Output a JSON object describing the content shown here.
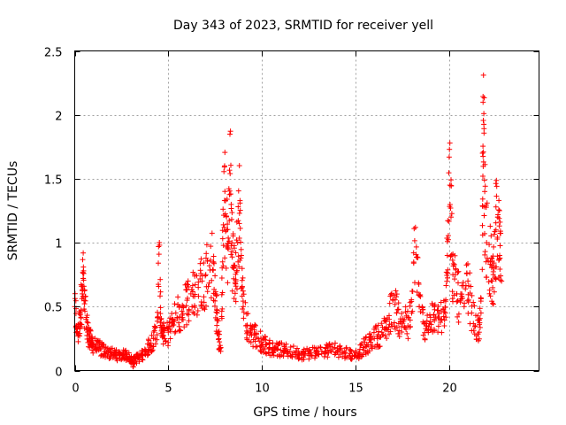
{
  "chart_data": {
    "type": "scatter",
    "title": "Day 343 of 2023, SRMTID for receiver yell",
    "xlabel": "GPS time / hours",
    "ylabel": "SRMTID / TECUs",
    "xlim": [
      0,
      24.8
    ],
    "ylim": [
      0,
      2.5
    ],
    "xticks": [
      0,
      5,
      10,
      15,
      20
    ],
    "xtick_labels": [
      "0",
      "5",
      "10",
      "15",
      "20"
    ],
    "yticks": [
      0,
      0.5,
      1,
      1.5,
      2,
      2.5
    ],
    "ytick_labels": [
      "0",
      "0.5",
      "1",
      "1.5",
      "2",
      "2.5"
    ],
    "grid": true,
    "marker": "+",
    "color": "#ff0000",
    "series": [
      {
        "name": "SRMTID",
        "description": "Dense scatter of SRMTID samples; values listed as (hour, TECU) trace points",
        "points": [
          [
            0.0,
            0.5
          ],
          [
            0.1,
            0.35
          ],
          [
            0.2,
            0.28
          ],
          [
            0.3,
            0.45
          ],
          [
            0.4,
            0.6
          ],
          [
            0.45,
            0.72
          ],
          [
            0.5,
            0.55
          ],
          [
            0.6,
            0.4
          ],
          [
            0.7,
            0.3
          ],
          [
            0.8,
            0.25
          ],
          [
            0.9,
            0.22
          ],
          [
            1.0,
            0.2
          ],
          [
            1.2,
            0.18
          ],
          [
            1.4,
            0.17
          ],
          [
            1.6,
            0.15
          ],
          [
            1.8,
            0.14
          ],
          [
            2.0,
            0.13
          ],
          [
            2.2,
            0.12
          ],
          [
            2.4,
            0.12
          ],
          [
            2.6,
            0.13
          ],
          [
            2.8,
            0.11
          ],
          [
            3.0,
            0.1
          ],
          [
            3.1,
            0.05
          ],
          [
            3.2,
            0.09
          ],
          [
            3.4,
            0.1
          ],
          [
            3.6,
            0.12
          ],
          [
            3.8,
            0.16
          ],
          [
            4.0,
            0.2
          ],
          [
            4.2,
            0.25
          ],
          [
            4.4,
            0.28
          ],
          [
            4.5,
            0.91
          ],
          [
            4.6,
            0.4
          ],
          [
            4.7,
            0.3
          ],
          [
            4.8,
            0.25
          ],
          [
            5.0,
            0.3
          ],
          [
            5.2,
            0.35
          ],
          [
            5.4,
            0.45
          ],
          [
            5.6,
            0.42
          ],
          [
            5.8,
            0.5
          ],
          [
            6.0,
            0.55
          ],
          [
            6.2,
            0.6
          ],
          [
            6.4,
            0.58
          ],
          [
            6.6,
            0.65
          ],
          [
            6.8,
            0.7
          ],
          [
            7.0,
            0.75
          ],
          [
            7.2,
            0.82
          ],
          [
            7.4,
            0.85
          ],
          [
            7.5,
            0.6
          ],
          [
            7.6,
            0.4
          ],
          [
            7.7,
            0.25
          ],
          [
            7.8,
            0.15
          ],
          [
            7.9,
            0.85
          ],
          [
            8.0,
            1.33
          ],
          [
            8.1,
            1.1
          ],
          [
            8.2,
            0.95
          ],
          [
            8.3,
            1.54
          ],
          [
            8.4,
            1.0
          ],
          [
            8.5,
            0.8
          ],
          [
            8.6,
            0.7
          ],
          [
            8.7,
            1.0
          ],
          [
            8.8,
            1.23
          ],
          [
            8.9,
            0.9
          ],
          [
            9.0,
            0.5
          ],
          [
            9.2,
            0.35
          ],
          [
            9.4,
            0.3
          ],
          [
            9.6,
            0.28
          ],
          [
            9.8,
            0.25
          ],
          [
            10.0,
            0.22
          ],
          [
            10.2,
            0.2
          ],
          [
            10.4,
            0.18
          ],
          [
            10.6,
            0.18
          ],
          [
            10.8,
            0.17
          ],
          [
            11.0,
            0.16
          ],
          [
            11.2,
            0.16
          ],
          [
            11.5,
            0.15
          ],
          [
            11.8,
            0.14
          ],
          [
            12.0,
            0.13
          ],
          [
            12.3,
            0.13
          ],
          [
            12.6,
            0.14
          ],
          [
            12.9,
            0.15
          ],
          [
            13.2,
            0.15
          ],
          [
            13.5,
            0.16
          ],
          [
            13.8,
            0.17
          ],
          [
            14.1,
            0.16
          ],
          [
            14.4,
            0.15
          ],
          [
            14.7,
            0.13
          ],
          [
            15.0,
            0.12
          ],
          [
            15.2,
            0.14
          ],
          [
            15.4,
            0.18
          ],
          [
            15.6,
            0.2
          ],
          [
            15.8,
            0.22
          ],
          [
            16.0,
            0.25
          ],
          [
            16.2,
            0.28
          ],
          [
            16.4,
            0.3
          ],
          [
            16.6,
            0.32
          ],
          [
            16.8,
            0.4
          ],
          [
            17.0,
            0.55
          ],
          [
            17.2,
            0.45
          ],
          [
            17.4,
            0.38
          ],
          [
            17.6,
            0.4
          ],
          [
            17.8,
            0.35
          ],
          [
            18.0,
            0.45
          ],
          [
            18.2,
            1.12
          ],
          [
            18.4,
            0.5
          ],
          [
            18.6,
            0.38
          ],
          [
            18.8,
            0.35
          ],
          [
            19.0,
            0.38
          ],
          [
            19.2,
            0.4
          ],
          [
            19.4,
            0.42
          ],
          [
            19.6,
            0.4
          ],
          [
            19.8,
            0.45
          ],
          [
            19.9,
            0.9
          ],
          [
            20.0,
            1.67
          ],
          [
            20.1,
            1.2
          ],
          [
            20.2,
            0.75
          ],
          [
            20.4,
            0.6
          ],
          [
            20.6,
            0.55
          ],
          [
            20.8,
            0.5
          ],
          [
            21.0,
            0.7
          ],
          [
            21.2,
            0.45
          ],
          [
            21.4,
            0.35
          ],
          [
            21.6,
            0.3
          ],
          [
            21.7,
            0.45
          ],
          [
            21.8,
            1.52
          ],
          [
            21.85,
            2.01
          ],
          [
            21.9,
            1.4
          ],
          [
            22.0,
            1.0
          ],
          [
            22.2,
            0.85
          ],
          [
            22.3,
            0.7
          ],
          [
            22.4,
            0.8
          ],
          [
            22.5,
            1.1
          ],
          [
            22.6,
            1.2
          ],
          [
            22.7,
            0.9
          ],
          [
            22.8,
            0.7
          ]
        ]
      }
    ]
  }
}
